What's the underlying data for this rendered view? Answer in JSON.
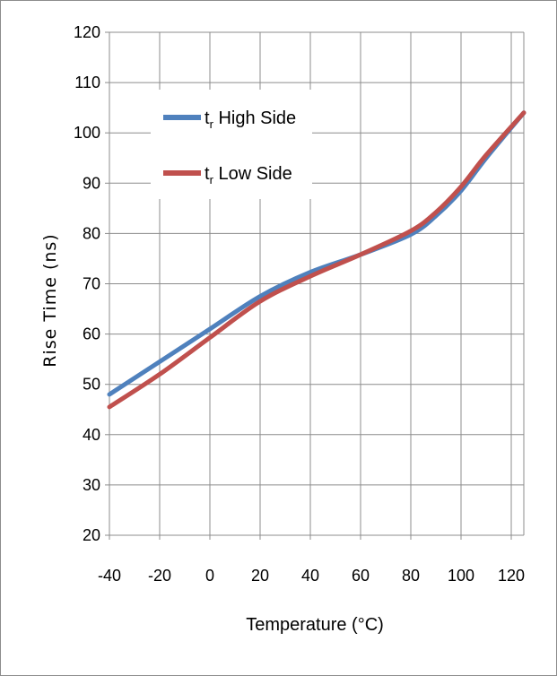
{
  "chart_data": {
    "type": "line",
    "xlabel": "Temperature (°C)",
    "ylabel": "Rise Time (ns)",
    "xlim": [
      -40,
      125
    ],
    "ylim": [
      20,
      120
    ],
    "x_ticks": [
      -40,
      -20,
      0,
      20,
      40,
      60,
      80,
      100,
      120
    ],
    "y_ticks": [
      20,
      30,
      40,
      50,
      60,
      70,
      80,
      90,
      100,
      110,
      120
    ],
    "grid": true,
    "legend_position": "top-left",
    "series": [
      {
        "name_main": "t",
        "name_sub": "r",
        "name_rest": " High Side",
        "color": "#4f81bd",
        "x": [
          -40,
          -20,
          0,
          20,
          40,
          60,
          80,
          90,
          100,
          110,
          125
        ],
        "y": [
          48,
          54.5,
          61,
          67.5,
          72.3,
          75.8,
          79.8,
          83.5,
          88.5,
          95,
          104
        ]
      },
      {
        "name_main": "t",
        "name_sub": "r",
        "name_rest": " Low Side",
        "color": "#c0504d",
        "x": [
          -40,
          -20,
          0,
          20,
          40,
          60,
          80,
          90,
          100,
          110,
          125
        ],
        "y": [
          45.5,
          52,
          59.3,
          66.5,
          71.5,
          75.8,
          80.5,
          84.2,
          89.3,
          95.6,
          104
        ]
      }
    ]
  }
}
